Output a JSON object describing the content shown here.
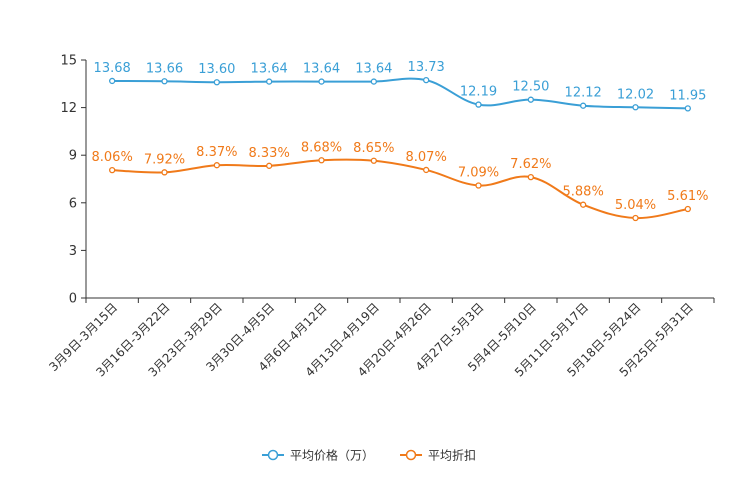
{
  "chart_data": {
    "type": "line",
    "title": "",
    "xlabel": "",
    "ylabel": "",
    "ylim": [
      0,
      15
    ],
    "yticks": [
      0,
      3,
      6,
      9,
      12,
      15
    ],
    "grid": false,
    "legend_position": "bottom-center",
    "categories": [
      "3月9日-3月15日",
      "3月16日-3月22日",
      "3月23日-3月29日",
      "3月30日-4月5日",
      "4月6日-4月12日",
      "4月13日-4月19日",
      "4月20日-4月26日",
      "4月27日-5月3日",
      "5月4日-5月10日",
      "5月11日-5月17日",
      "5月18日-5月24日",
      "5月25日-5月31日"
    ],
    "series": [
      {
        "name": "平均价格（万）",
        "color": "#3a9fd6",
        "values": [
          13.68,
          13.66,
          13.6,
          13.64,
          13.64,
          13.64,
          13.73,
          12.19,
          12.5,
          12.12,
          12.02,
          11.95
        ],
        "labels": [
          "13.68",
          "13.66",
          "13.60",
          "13.64",
          "13.64",
          "13.64",
          "13.73",
          "12.19",
          "12.50",
          "12.12",
          "12.02",
          "11.95"
        ]
      },
      {
        "name": "平均折扣",
        "color": "#f07a1a",
        "values": [
          8.06,
          7.92,
          8.37,
          8.33,
          8.68,
          8.65,
          8.07,
          7.09,
          7.62,
          5.88,
          5.04,
          5.61
        ],
        "labels": [
          "8.06%",
          "7.92%",
          "8.37%",
          "8.33%",
          "8.68%",
          "8.65%",
          "8.07%",
          "7.09%",
          "7.62%",
          "5.88%",
          "5.04%",
          "5.61%"
        ]
      }
    ]
  }
}
